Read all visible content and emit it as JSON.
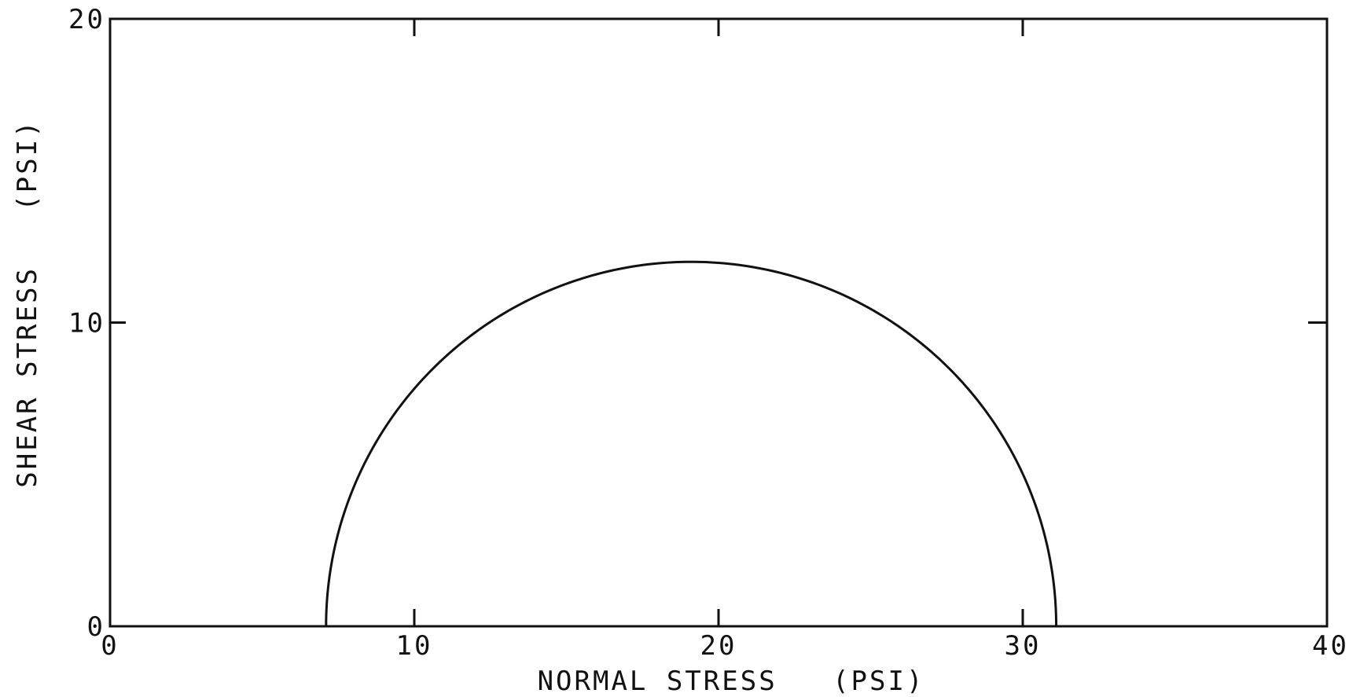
{
  "chart_data": {
    "type": "line",
    "title": "",
    "xlabel": "NORMAL STRESS   (PSI)",
    "ylabel": "SHEAR STRESS   (PSI)",
    "xlim": [
      0,
      40
    ],
    "ylim": [
      0,
      20
    ],
    "x_ticks": [
      "0",
      "10",
      "20",
      "30",
      "40"
    ],
    "y_ticks": [
      "0",
      "10",
      "20"
    ],
    "grid": false,
    "legend": "none",
    "line_color": "#111111",
    "series": [
      {
        "shape": "mohr-circle-upper-half",
        "center": 19.1,
        "radius": 12.0,
        "x": [
          7.1,
          7.3,
          7.9,
          8.9,
          10.2,
          11.9,
          13.9,
          16.0,
          17.9,
          19.1,
          20.3,
          22.2,
          24.3,
          26.3,
          28.0,
          29.3,
          30.3,
          30.9,
          31.1
        ],
        "y": [
          0.0,
          2.1,
          4.1,
          6.0,
          7.7,
          9.2,
          10.4,
          11.3,
          11.9,
          12.0,
          11.9,
          11.3,
          10.4,
          9.2,
          7.7,
          6.0,
          4.1,
          2.1,
          0.0
        ]
      }
    ]
  }
}
